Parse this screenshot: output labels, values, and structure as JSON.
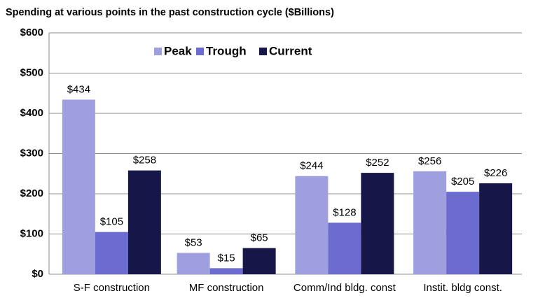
{
  "chart_data": {
    "type": "bar",
    "title": "Spending at various points in the past construction cycle ($Billions)",
    "categories": [
      "S-F construction",
      "MF construction",
      "Comm/Ind bldg. const",
      "Instit. bldg const."
    ],
    "series": [
      {
        "name": "Peak",
        "color": "#9f9fe0",
        "values": [
          434,
          53,
          244,
          256
        ],
        "value_labels": [
          "$434",
          "$53",
          "$244",
          "$256"
        ]
      },
      {
        "name": "Trough",
        "color": "#6b6bd0",
        "values": [
          105,
          15,
          128,
          205
        ],
        "value_labels": [
          "$105",
          "$15",
          "$128",
          "$205"
        ]
      },
      {
        "name": "Current",
        "color": "#161648",
        "values": [
          258,
          65,
          252,
          226
        ],
        "value_labels": [
          "$258",
          "$65",
          "$252",
          "$226"
        ]
      }
    ],
    "ylim": [
      0,
      600
    ],
    "yticks": [
      {
        "value": 0,
        "label": "$0"
      },
      {
        "value": 100,
        "label": "$100"
      },
      {
        "value": 200,
        "label": "$200"
      },
      {
        "value": 300,
        "label": "$300"
      },
      {
        "value": 400,
        "label": "$400"
      },
      {
        "value": 500,
        "label": "$500"
      },
      {
        "value": 600,
        "label": "$600"
      }
    ],
    "grid": true,
    "legend": "top"
  }
}
